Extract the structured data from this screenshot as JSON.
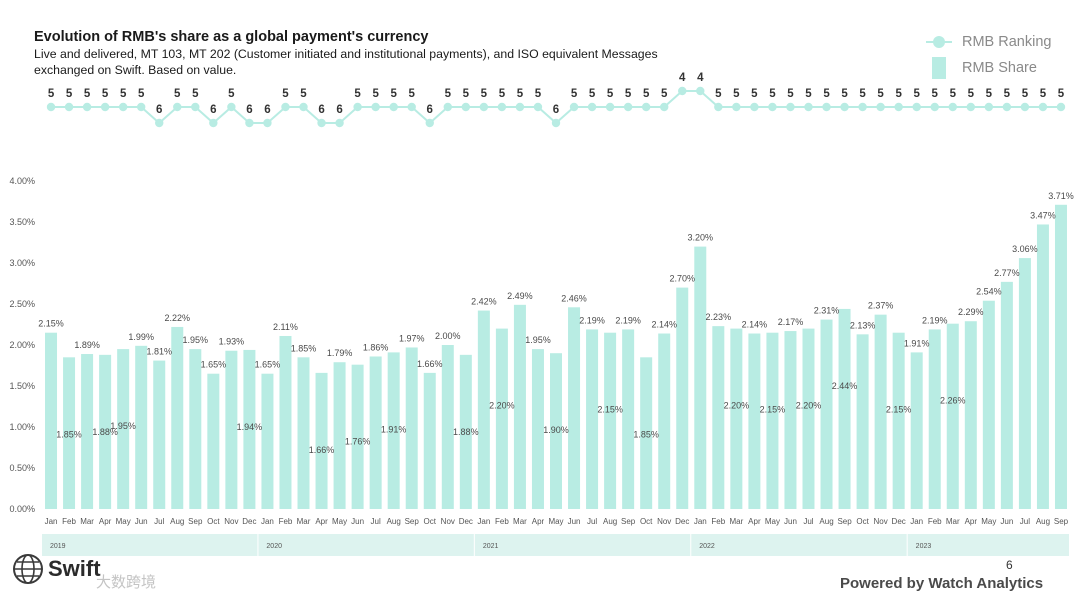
{
  "header": {
    "title": "Evolution of RMB's share as a global payment's currency",
    "subtitle": "Live and delivered, MT 103, MT 202 (Customer initiated and institutional payments), and ISO equivalent Messages exchanged on Swift. Based on value."
  },
  "legend": {
    "ranking_label": "RMB Ranking",
    "share_label": "RMB Share"
  },
  "footer": {
    "logo_text": "Swift",
    "watermark_text": "大数跨境",
    "page_number": "6",
    "powered_by": "Powered by Watch Analytics"
  },
  "colors": {
    "bar": "#b8ece3",
    "line": "#b8ece3",
    "axis_text": "#555555",
    "label_text": "#4a4a4a",
    "rank_text": "#333333",
    "year_band": "#ddf3ef"
  },
  "chart_data": {
    "type": "bar",
    "title": "Evolution of RMB's share as a global payment's currency",
    "categories": [
      "Jan",
      "Feb",
      "Mar",
      "Apr",
      "May",
      "Jun",
      "Jul",
      "Aug",
      "Sep",
      "Oct",
      "Nov",
      "Dec",
      "Jan",
      "Feb",
      "Mar",
      "Apr",
      "May",
      "Jun",
      "Jul",
      "Aug",
      "Sep",
      "Oct",
      "Nov",
      "Dec",
      "Jan",
      "Feb",
      "Mar",
      "Apr",
      "May",
      "Jun",
      "Jul",
      "Aug",
      "Sep",
      "Oct",
      "Nov",
      "Dec",
      "Jan",
      "Feb",
      "Mar",
      "Apr",
      "May",
      "Jun",
      "Jul",
      "Aug",
      "Sep",
      "Oct",
      "Nov",
      "Dec",
      "Jan",
      "Feb",
      "Mar",
      "Apr",
      "May",
      "Jun",
      "Jul",
      "Aug",
      "Sep"
    ],
    "years": [
      {
        "label": "2019",
        "start": 0,
        "end": 11
      },
      {
        "label": "2020",
        "start": 12,
        "end": 23
      },
      {
        "label": "2021",
        "start": 24,
        "end": 35
      },
      {
        "label": "2022",
        "start": 36,
        "end": 47
      },
      {
        "label": "2023",
        "start": 48,
        "end": 56
      }
    ],
    "series": [
      {
        "name": "RMB Share",
        "values": [
          2.15,
          1.85,
          1.89,
          1.88,
          1.95,
          1.99,
          1.81,
          2.22,
          1.95,
          1.65,
          1.93,
          1.94,
          1.65,
          2.11,
          1.85,
          1.66,
          1.79,
          1.76,
          1.86,
          1.91,
          1.97,
          1.66,
          2.0,
          1.88,
          2.42,
          2.2,
          2.49,
          1.95,
          1.9,
          2.46,
          2.19,
          2.15,
          2.19,
          1.85,
          2.14,
          2.7,
          3.2,
          2.23,
          2.2,
          2.14,
          2.15,
          2.17,
          2.2,
          2.31,
          2.44,
          2.13,
          2.37,
          2.15,
          1.91,
          2.19,
          2.26,
          2.29,
          2.54,
          2.77,
          3.06,
          3.47,
          3.71
        ],
        "labels": [
          "2.15%",
          "1.85%",
          "1.89%",
          "1.88%",
          "1.95%",
          "1.99%",
          "1.81%",
          "2.22%",
          "1.95%",
          "1.65%",
          "1.93%",
          "1.94%",
          "1.65%",
          "2.11%",
          "1.85%",
          "1.66%",
          "1.79%",
          "1.76%",
          "1.86%",
          "1.91%",
          "1.97%",
          "1.66%",
          "2.00%",
          "1.88%",
          "2.42%",
          "2.20%",
          "2.49%",
          "1.95%",
          "1.90%",
          "2.46%",
          "2.19%",
          "2.15%",
          "2.19%",
          "1.85%",
          "2.14%",
          "2.70%",
          "3.20%",
          "2.23%",
          "2.20%",
          "2.14%",
          "2.15%",
          "2.17%",
          "2.20%",
          "2.31%",
          "2.44%",
          "2.13%",
          "2.37%",
          "2.15%",
          "1.91%",
          "2.19%",
          "2.26%",
          "2.29%",
          "2.54%",
          "2.77%",
          "3.06%",
          "3.47%",
          "3.71%"
        ],
        "label_inside": [
          false,
          true,
          false,
          true,
          true,
          false,
          false,
          false,
          false,
          false,
          false,
          true,
          false,
          false,
          false,
          true,
          false,
          true,
          false,
          true,
          false,
          false,
          false,
          true,
          false,
          true,
          false,
          false,
          true,
          false,
          false,
          true,
          false,
          true,
          false,
          false,
          false,
          false,
          true,
          false,
          true,
          false,
          true,
          false,
          true,
          false,
          false,
          true,
          false,
          false,
          true,
          false,
          false,
          false,
          false,
          false,
          false
        ]
      },
      {
        "name": "RMB Ranking",
        "values": [
          5,
          5,
          5,
          5,
          5,
          5,
          6,
          5,
          5,
          6,
          5,
          6,
          6,
          5,
          5,
          6,
          6,
          5,
          5,
          5,
          5,
          6,
          5,
          5,
          5,
          5,
          5,
          5,
          6,
          5,
          5,
          5,
          5,
          5,
          5,
          4,
          4,
          5,
          5,
          5,
          5,
          5,
          5,
          5,
          5,
          5,
          5,
          5,
          5,
          5,
          5,
          5,
          5,
          5,
          5,
          5,
          5
        ]
      }
    ],
    "y_ticks": [
      "0.00%",
      "0.50%",
      "1.00%",
      "1.50%",
      "2.00%",
      "2.50%",
      "3.00%",
      "3.50%",
      "4.00%"
    ],
    "ylim": [
      0,
      4
    ],
    "grid": false,
    "legend_position": "top-right"
  }
}
